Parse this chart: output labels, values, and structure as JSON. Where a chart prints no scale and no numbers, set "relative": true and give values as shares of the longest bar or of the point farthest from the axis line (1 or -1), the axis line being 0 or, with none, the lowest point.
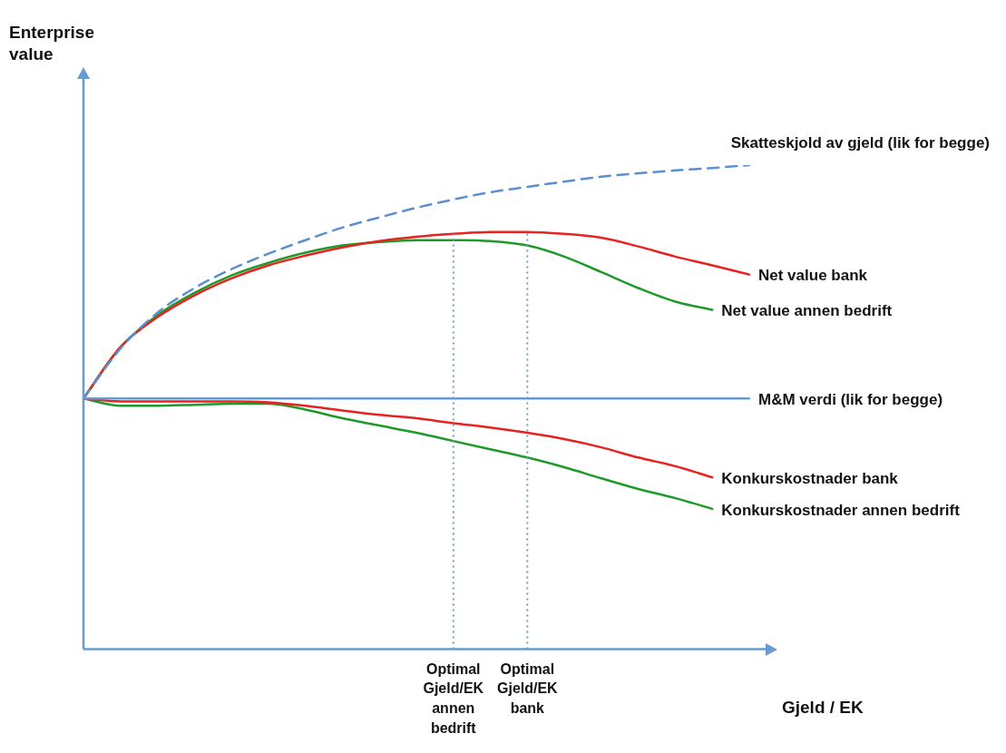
{
  "chart_data": {
    "type": "line",
    "relative": true,
    "xlabel": "Gjeld / EK",
    "annotations": [
      "Enterprise value"
    ],
    "marker": "none",
    "grid": false,
    "categories": [
      null,
      null,
      null,
      null,
      null,
      null,
      null,
      null,
      null,
      null,
      "Optimal Gjeld/EK annen bedrift",
      null,
      "Optimal Gjeld/EK bank",
      null,
      null,
      null,
      null,
      null,
      null
    ],
    "ref_lines": [
      {
        "axis": "x",
        "value": "Optimal Gjeld/EK annen bedrift",
        "color": "#6a9bd0",
        "line_style": "dotted"
      },
      {
        "axis": "x",
        "value": "Optimal Gjeld/EK bank",
        "color": "#6a9bd0",
        "line_style": "dotted"
      }
    ],
    "series": [
      {
        "name": "Skatteskjold av gjeld (lik for begge)",
        "color": "#5b8fd0",
        "line_style": "dashed",
        "values": [
          0.518,
          0.621,
          0.695,
          0.746,
          0.785,
          0.817,
          0.845,
          0.871,
          0.892,
          0.912,
          0.929,
          0.944,
          0.955,
          0.966,
          0.976,
          0.983,
          0.989,
          0.994,
          1
        ]
      },
      {
        "name": "Net value bank",
        "color": "#e8231f",
        "line_style": "solid",
        "values": [
          0.518,
          0.624,
          0.686,
          0.731,
          0.766,
          0.793,
          0.813,
          0.83,
          0.843,
          0.852,
          0.858,
          0.862,
          0.862,
          0.858,
          0.85,
          0.832,
          0.811,
          0.793,
          0.774
        ]
      },
      {
        "name": "Net value annen bedrift",
        "color": "#1e9a2a",
        "line_style": "solid",
        "values": [
          0.518,
          0.624,
          0.69,
          0.736,
          0.772,
          0.798,
          0.819,
          0.834,
          0.841,
          0.845,
          0.845,
          0.843,
          0.834,
          0.811,
          0.779,
          0.746,
          0.718,
          0.701,
          null
        ]
      },
      {
        "name": "M&M verdi (lik for begge)",
        "color": "#6a9bd0",
        "line_style": "solid",
        "values": [
          0.518,
          0.518,
          0.518,
          0.518,
          0.518,
          0.518,
          0.518,
          0.518,
          0.518,
          0.518,
          0.518,
          0.518,
          0.518,
          0.518,
          0.518,
          0.518,
          0.518,
          0.518,
          0.518
        ]
      },
      {
        "name": "Konkurskostnader bank",
        "color": "#e8231f",
        "line_style": "solid",
        "values": [
          0.518,
          0.512,
          0.512,
          0.512,
          0.512,
          0.51,
          0.503,
          0.493,
          0.484,
          0.477,
          0.467,
          0.458,
          0.447,
          0.434,
          0.417,
          0.396,
          0.378,
          0.355,
          null
        ]
      },
      {
        "name": "Konkurskostnader annen bedrift",
        "color": "#1e9a2a",
        "line_style": "solid",
        "values": [
          0.518,
          0.503,
          0.503,
          0.505,
          0.507,
          0.507,
          0.495,
          0.477,
          0.462,
          0.447,
          0.43,
          0.413,
          0.396,
          0.376,
          0.353,
          0.331,
          0.312,
          0.29,
          null
        ]
      }
    ]
  }
}
